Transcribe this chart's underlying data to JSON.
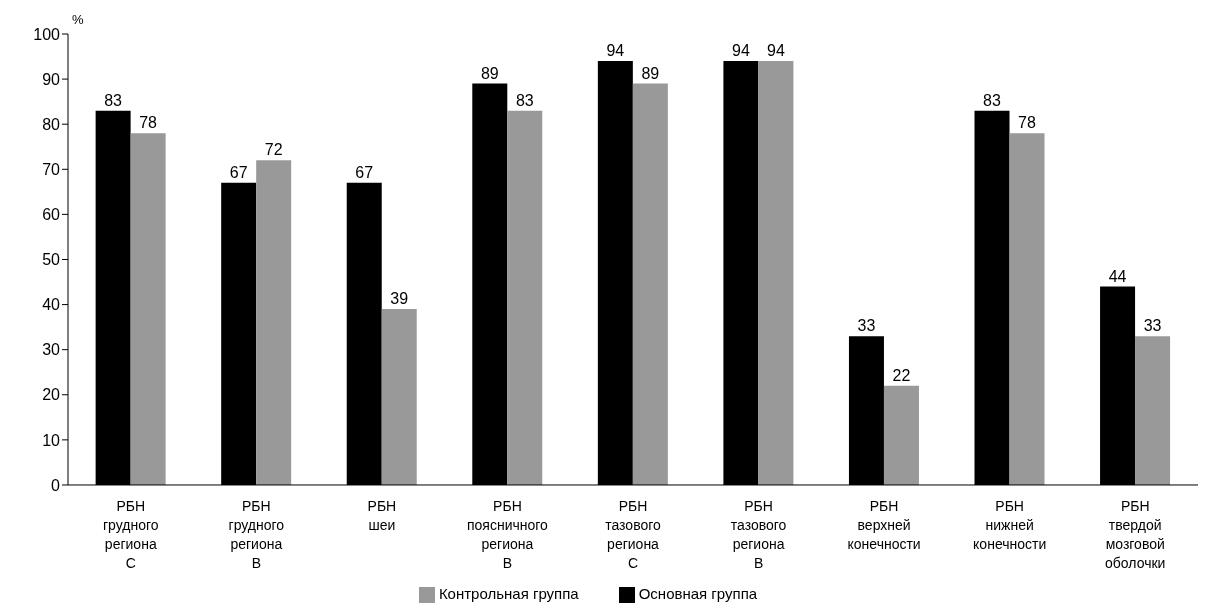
{
  "chart_data": {
    "type": "bar",
    "ylabel": "%",
    "categories": [
      "РБН грудного региона С",
      "РБН грудного региона В",
      "РБН шеи",
      "РБН поясничного региона В",
      "РБН тазового региона С",
      "РБН тазового региона В",
      "РБН верхней конечности",
      "РБН нижней конечности",
      "РБН твердой мозговой оболочки"
    ],
    "series": [
      {
        "name": "Основная группа",
        "color": "#000000",
        "values": [
          83,
          67,
          67,
          89,
          94,
          94,
          33,
          83,
          44
        ]
      },
      {
        "name": "Контрольная группа",
        "color": "#999999",
        "values": [
          78,
          72,
          39,
          83,
          89,
          94,
          22,
          78,
          33
        ]
      }
    ],
    "ylim": [
      0,
      100
    ],
    "yticks": [
      0,
      10,
      20,
      30,
      40,
      50,
      60,
      70,
      80,
      90,
      100
    ],
    "grid": false,
    "legend": "bottom",
    "data_labels": true
  }
}
